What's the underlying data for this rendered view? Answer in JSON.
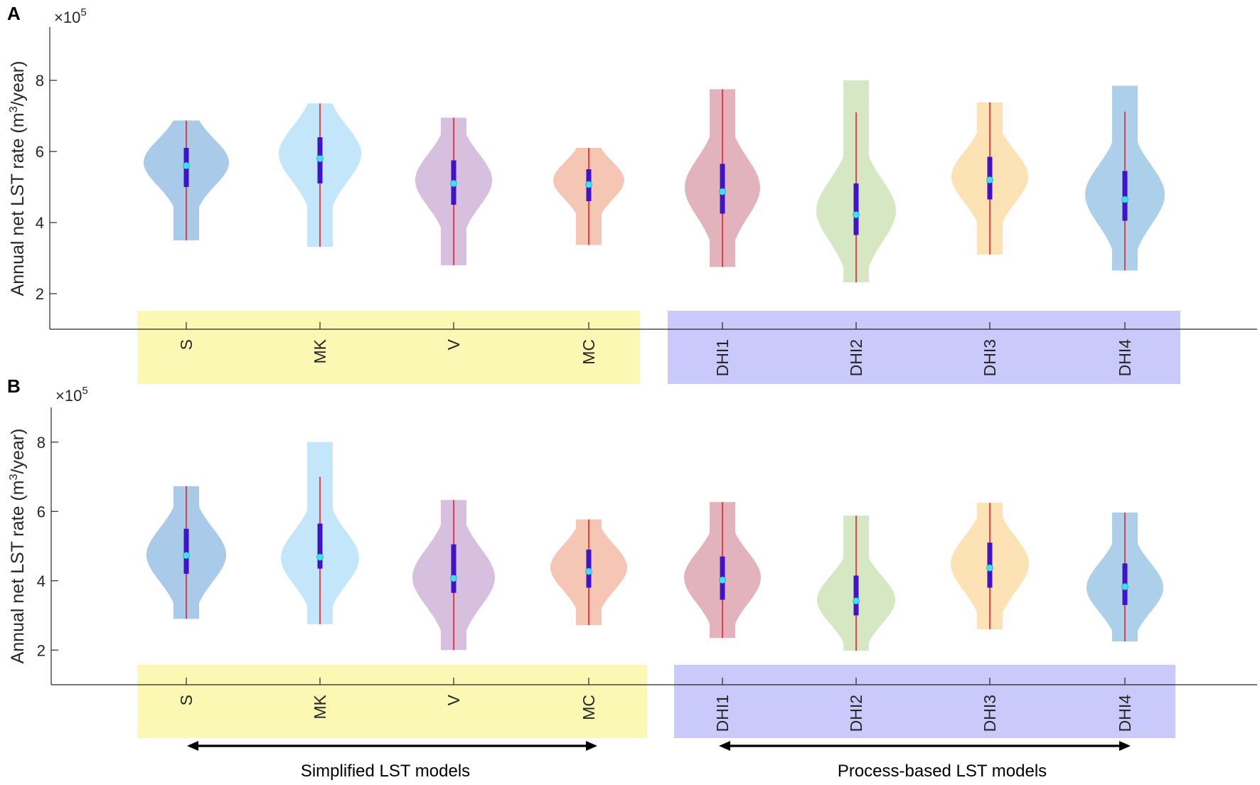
{
  "figure": {
    "group_captions": [
      "Simplified LST models",
      "Process-based LST models"
    ],
    "group_colors": {
      "simplified": "#fbf8b4",
      "process": "#c9c9fc"
    }
  },
  "chart_data": [
    {
      "panel": "A",
      "type": "violin",
      "ylabel_main": "Annual net LST rate (m",
      "ylabel_sup": "3",
      "ylabel_end": "/year)",
      "multiplier_base": "×10",
      "multiplier_exp": "5",
      "ylim": [
        1.0,
        9.5
      ],
      "yticks": [
        2,
        4,
        6,
        8
      ],
      "categories": [
        "S",
        "MK",
        "V",
        "MC",
        "DHI1",
        "DHI2",
        "DHI3",
        "DHI4"
      ],
      "colors": [
        "#a9cae8",
        "#c4e6fb",
        "#d7bfe0",
        "#f6c6b5",
        "#e2b3bd",
        "#d5e7c3",
        "#fce2b5",
        "#acd0ea"
      ],
      "series": [
        {
          "name": "S",
          "min": 3.5,
          "max": 6.87,
          "whisker_low": 3.5,
          "whisker_high": 6.87,
          "q1": 5.0,
          "median": 5.6,
          "q3": 6.1,
          "mode": 5.7,
          "half_width": 60
        },
        {
          "name": "MK",
          "min": 3.32,
          "max": 7.35,
          "whisker_low": 3.32,
          "whisker_high": 7.35,
          "q1": 5.1,
          "median": 5.8,
          "q3": 6.4,
          "mode": 5.95,
          "half_width": 58
        },
        {
          "name": "V",
          "min": 2.8,
          "max": 6.95,
          "whisker_low": 2.8,
          "whisker_high": 6.95,
          "q1": 4.5,
          "median": 5.1,
          "q3": 5.75,
          "mode": 5.2,
          "half_width": 54
        },
        {
          "name": "MC",
          "min": 3.37,
          "max": 6.1,
          "whisker_low": 3.37,
          "whisker_high": 6.1,
          "q1": 4.6,
          "median": 5.07,
          "q3": 5.5,
          "mode": 5.2,
          "half_width": 50
        },
        {
          "name": "DHI1",
          "min": 2.75,
          "max": 7.75,
          "whisker_low": 2.75,
          "whisker_high": 7.75,
          "q1": 4.25,
          "median": 4.87,
          "q3": 5.65,
          "mode": 5.0,
          "half_width": 53
        },
        {
          "name": "DHI2",
          "min": 2.32,
          "max": 8.0,
          "whisker_low": 2.32,
          "whisker_high": 7.1,
          "q1": 3.65,
          "median": 4.22,
          "q3": 5.1,
          "mode": 4.35,
          "half_width": 56
        },
        {
          "name": "DHI3",
          "min": 3.1,
          "max": 7.38,
          "whisker_low": 3.1,
          "whisker_high": 7.38,
          "q1": 4.65,
          "median": 5.2,
          "q3": 5.85,
          "mode": 5.3,
          "half_width": 54
        },
        {
          "name": "DHI4",
          "min": 2.65,
          "max": 7.85,
          "whisker_low": 2.65,
          "whisker_high": 7.12,
          "q1": 4.05,
          "median": 4.65,
          "q3": 5.45,
          "mode": 4.8,
          "half_width": 56
        }
      ]
    },
    {
      "panel": "B",
      "type": "violin",
      "ylabel_main": "Annual net LST rate (m",
      "ylabel_sup": "3",
      "ylabel_end": "/year)",
      "multiplier_base": "×10",
      "multiplier_exp": "5",
      "ylim": [
        1.0,
        9.0
      ],
      "yticks": [
        2,
        4,
        6,
        8
      ],
      "categories": [
        "S",
        "MK",
        "V",
        "MC",
        "DHI1",
        "DHI2",
        "DHI3",
        "DHI4"
      ],
      "colors": [
        "#a9cae8",
        "#c4e6fb",
        "#d7bfe0",
        "#f6c6b5",
        "#e2b3bd",
        "#d5e7c3",
        "#fce2b5",
        "#acd0ea"
      ],
      "series": [
        {
          "name": "S",
          "min": 2.9,
          "max": 6.73,
          "whisker_low": 2.9,
          "whisker_high": 6.73,
          "q1": 4.2,
          "median": 4.73,
          "q3": 5.5,
          "mode": 4.75,
          "half_width": 56
        },
        {
          "name": "MK",
          "min": 2.75,
          "max": 8.0,
          "whisker_low": 2.75,
          "whisker_high": 7.0,
          "q1": 4.35,
          "median": 4.68,
          "q3": 5.65,
          "mode": 4.65,
          "half_width": 55
        },
        {
          "name": "V",
          "min": 2.0,
          "max": 6.33,
          "whisker_low": 2.0,
          "whisker_high": 6.33,
          "q1": 3.65,
          "median": 4.07,
          "q3": 5.05,
          "mode": 4.1,
          "half_width": 58
        },
        {
          "name": "MC",
          "min": 2.72,
          "max": 5.77,
          "whisker_low": 2.72,
          "whisker_high": 5.77,
          "q1": 3.8,
          "median": 4.27,
          "q3": 4.9,
          "mode": 4.4,
          "half_width": 54
        },
        {
          "name": "DHI1",
          "min": 2.35,
          "max": 6.27,
          "whisker_low": 2.35,
          "whisker_high": 6.27,
          "q1": 3.45,
          "median": 4.02,
          "q3": 4.7,
          "mode": 4.1,
          "half_width": 54
        },
        {
          "name": "DHI2",
          "min": 1.98,
          "max": 5.88,
          "whisker_low": 1.98,
          "whisker_high": 5.88,
          "q1": 3.0,
          "median": 3.42,
          "q3": 4.15,
          "mode": 3.45,
          "half_width": 55
        },
        {
          "name": "DHI3",
          "min": 2.6,
          "max": 6.25,
          "whisker_low": 2.6,
          "whisker_high": 6.25,
          "q1": 3.8,
          "median": 4.37,
          "q3": 5.1,
          "mode": 4.5,
          "half_width": 55
        },
        {
          "name": "DHI4",
          "min": 2.25,
          "max": 5.97,
          "whisker_low": 2.25,
          "whisker_high": 5.97,
          "q1": 3.3,
          "median": 3.83,
          "q3": 4.5,
          "mode": 3.8,
          "half_width": 54
        }
      ]
    }
  ]
}
